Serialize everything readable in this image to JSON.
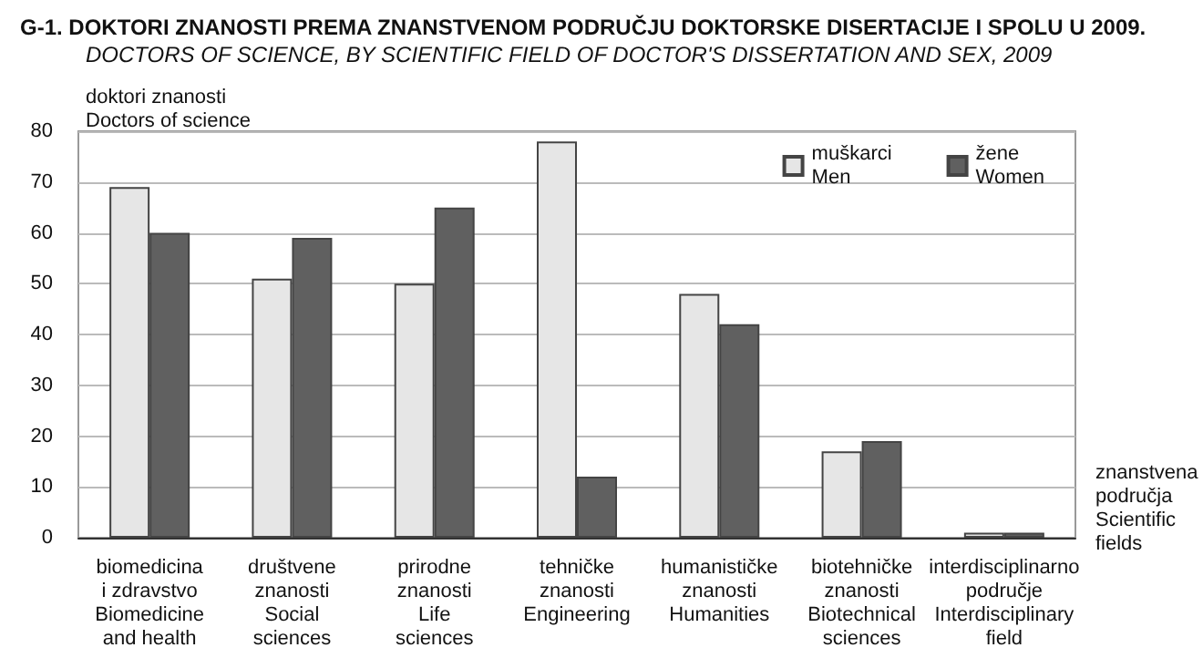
{
  "chart_data": {
    "type": "bar",
    "title": "G-1. DOKTORI ZNANOSTI PREMA ZNANSTVENOM PODRUČJU DOKTORSKE DISERTACIJE I SPOLU U 2009.",
    "subtitle": "DOCTORS OF SCIENCE, BY SCIENTIFIC FIELD OF DOCTOR'S DISSERTATION AND SEX, 2009",
    "ylabel": "doktori znanosti\nDoctors of science",
    "xlabel": "znanstvena\npodručja\nScientific\nfields",
    "categories": [
      "biomedicina\ni zdravstvo\nBiomedicine\nand health",
      "društvene\nznanosti\nSocial\nsciences",
      "prirodne\nznanosti\nLife\nsciences",
      "tehničke\nznanosti\nEngineering",
      "humanističke\nznanosti\nHumanities",
      "biotehničke\nznanosti\nBiotechnical\nsciences",
      "interdisciplinarno\npodručje\nInterdisciplinary\nfield"
    ],
    "series": [
      {
        "name": "muškarci\nMen",
        "color": "#e6e6e6",
        "values": [
          69,
          51,
          50,
          78,
          48,
          17,
          1
        ]
      },
      {
        "name": "žene\nWomen",
        "color": "#606060",
        "values": [
          60,
          59,
          65,
          12,
          42,
          19,
          1
        ]
      }
    ],
    "ylim": [
      0,
      80
    ],
    "yticks": [
      0,
      10,
      20,
      30,
      40,
      50,
      60,
      70,
      80
    ],
    "grid": "y",
    "legend": "top right"
  }
}
